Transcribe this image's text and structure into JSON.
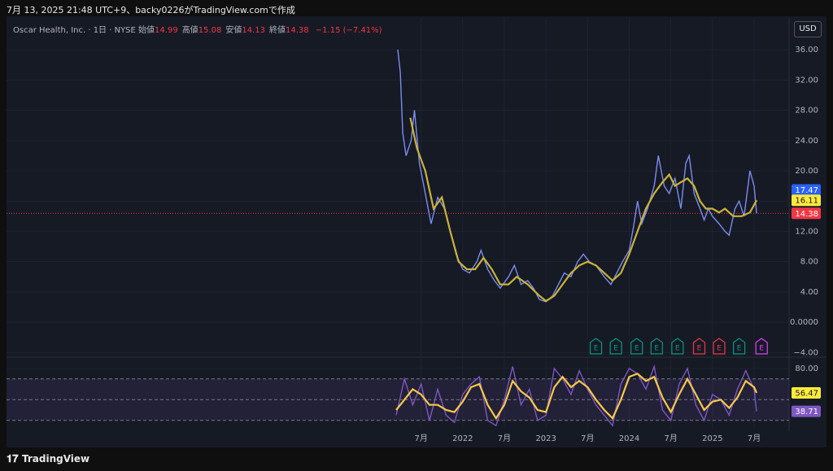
{
  "header": "7月 13, 2025 21:48 UTC+9、backy0226がTradingView.comで作成",
  "footer": "TradingView",
  "chart_data": [
    {
      "type": "line",
      "title": "Oscar Health, Inc. · 1日 · NYSE",
      "currency": "USD",
      "ohlc": [
        {
          "label": "始値",
          "value": 14.99
        },
        {
          "label": "高値",
          "value": 15.08
        },
        {
          "label": "安値",
          "value": 14.13
        },
        {
          "label": "終値",
          "value": 14.38
        }
      ],
      "change": "−1.15 (−7.41%)",
      "xlim": [
        2016.52,
        2025.92
      ],
      "xticks": [
        {
          "value": 2021.5,
          "label": "7月"
        },
        2022,
        {
          "value": 2022.5,
          "label": "7月"
        },
        2023,
        {
          "value": 2023.5,
          "label": "7月"
        },
        2024,
        {
          "value": 2024.5,
          "label": "7月"
        },
        2025,
        {
          "value": 2025.5,
          "label": "7月"
        }
      ],
      "ylim": [
        -4.5,
        40.2
      ],
      "yticks": [
        {
          "value": 36,
          "label": "36.00"
        },
        {
          "value": 32,
          "label": "32.00"
        },
        {
          "value": 28,
          "label": "28.00"
        },
        {
          "value": 24,
          "label": "24.00"
        },
        {
          "value": 20,
          "label": "20.00"
        },
        {
          "value": 16,
          "label": "16.00"
        },
        {
          "value": 12,
          "label": "12.00"
        },
        {
          "value": 8,
          "label": "8.00"
        },
        {
          "value": 4,
          "label": "4.00"
        },
        {
          "value": 0,
          "label": "0.0000"
        },
        {
          "value": -4,
          "label": "−4.00"
        }
      ],
      "grid": true,
      "series": [
        {
          "color": "#7b8cf0",
          "x": [
            2021.22,
            2021.25,
            2021.28,
            2021.32,
            2021.38,
            2021.42,
            2021.48,
            2021.55,
            2021.62,
            2021.7,
            2021.78,
            2021.85,
            2021.92,
            2022.0,
            2022.08,
            2022.17,
            2022.22,
            2022.3,
            2022.38,
            2022.45,
            2022.55,
            2022.62,
            2022.7,
            2022.78,
            2022.85,
            2022.92,
            2023.0,
            2023.08,
            2023.15,
            2023.22,
            2023.3,
            2023.38,
            2023.45,
            2023.52,
            2023.6,
            2023.7,
            2023.78,
            2023.85,
            2023.92,
            2024.0,
            2024.05,
            2024.1,
            2024.15,
            2024.22,
            2024.3,
            2024.35,
            2024.42,
            2024.48,
            2024.55,
            2024.62,
            2024.68,
            2024.72,
            2024.78,
            2024.85,
            2024.9,
            2024.95,
            2025.0,
            2025.08,
            2025.15,
            2025.2,
            2025.27,
            2025.32,
            2025.38,
            2025.45,
            2025.5,
            2025.53
          ],
          "values": [
            36,
            33,
            25,
            22,
            24,
            28,
            21,
            17,
            13,
            16.5,
            15,
            12,
            9,
            7,
            6.5,
            8,
            9.5,
            7,
            5.5,
            4.5,
            6,
            7.5,
            5,
            5.5,
            4.5,
            3,
            2.7,
            3.5,
            5,
            6.5,
            6,
            8,
            9,
            8,
            7.5,
            6,
            5,
            6.5,
            8,
            9.5,
            12.5,
            16,
            13,
            15,
            18,
            22,
            18,
            17,
            19,
            15,
            21,
            22,
            17,
            15,
            13.5,
            15,
            14,
            13,
            12,
            11.5,
            15,
            16,
            14,
            20,
            18,
            14.38
          ]
        },
        {
          "color": "#c9b33a",
          "x": [
            2021.37,
            2021.45,
            2021.55,
            2021.65,
            2021.75,
            2021.85,
            2021.95,
            2022.05,
            2022.15,
            2022.25,
            2022.35,
            2022.45,
            2022.55,
            2022.65,
            2022.78,
            2022.92,
            2023.0,
            2023.1,
            2023.2,
            2023.3,
            2023.4,
            2023.5,
            2023.6,
            2023.7,
            2023.8,
            2023.9,
            2024.0,
            2024.1,
            2024.2,
            2024.3,
            2024.4,
            2024.48,
            2024.55,
            2024.62,
            2024.7,
            2024.78,
            2024.85,
            2024.92,
            2025.0,
            2025.08,
            2025.15,
            2025.25,
            2025.35,
            2025.45,
            2025.53
          ],
          "values": [
            27,
            23,
            20,
            15,
            16.5,
            12,
            8,
            7,
            7,
            8.5,
            7,
            5,
            5,
            6,
            5,
            3.5,
            2.8,
            3.5,
            5,
            6.5,
            7.5,
            8,
            7.5,
            6.5,
            5.5,
            6.5,
            9,
            12,
            15,
            17,
            18.5,
            19.5,
            18,
            18.5,
            19,
            18,
            16,
            15,
            15,
            14.5,
            15,
            14,
            14,
            14.5,
            16.11
          ]
        }
      ],
      "last_markers": [
        {
          "value": 17.47,
          "color": "#2962ff"
        },
        {
          "value": 16.11,
          "color": "#ffeb3b"
        },
        {
          "value": 14.38,
          "color": "#f23645"
        }
      ],
      "last_line": {
        "value": 14.38,
        "color": "#f23645"
      },
      "earnings": [
        {
          "x": 2023.6,
          "label": "E",
          "color": "#089981"
        },
        {
          "x": 2023.84,
          "label": "E",
          "color": "#089981"
        },
        {
          "x": 2024.09,
          "label": "E",
          "color": "#089981"
        },
        {
          "x": 2024.33,
          "label": "E",
          "color": "#089981"
        },
        {
          "x": 2024.58,
          "label": "E",
          "color": "#089981"
        },
        {
          "x": 2024.84,
          "label": "E",
          "color": "#f23645"
        },
        {
          "x": 2025.08,
          "label": "E",
          "color": "#f23645"
        },
        {
          "x": 2025.32,
          "label": "E",
          "color": "#089981"
        },
        {
          "x": 2025.59,
          "label": "E",
          "color": "#e040fb"
        }
      ]
    },
    {
      "type": "line",
      "ylim": [
        22,
        90.2
      ],
      "yticks": [
        {
          "value": 80,
          "label": "80.00"
        }
      ],
      "bands": [
        30,
        50,
        70
      ],
      "series": [
        {
          "color": "#7e57c2",
          "x": [
            2021.2,
            2021.3,
            2021.4,
            2021.5,
            2021.6,
            2021.7,
            2021.8,
            2021.9,
            2022.0,
            2022.1,
            2022.2,
            2022.3,
            2022.4,
            2022.5,
            2022.6,
            2022.7,
            2022.8,
            2022.9,
            2023.0,
            2023.1,
            2023.2,
            2023.3,
            2023.4,
            2023.5,
            2023.6,
            2023.7,
            2023.8,
            2023.9,
            2024.0,
            2024.1,
            2024.2,
            2024.3,
            2024.4,
            2024.5,
            2024.6,
            2024.7,
            2024.8,
            2024.9,
            2025.0,
            2025.1,
            2025.2,
            2025.3,
            2025.4,
            2025.5,
            2025.53
          ],
          "values": [
            35,
            70,
            45,
            65,
            30,
            60,
            35,
            28,
            55,
            65,
            72,
            30,
            25,
            50,
            82,
            45,
            60,
            30,
            35,
            80,
            70,
            55,
            78,
            60,
            45,
            35,
            25,
            65,
            80,
            75,
            60,
            82,
            40,
            30,
            65,
            80,
            45,
            30,
            55,
            50,
            35,
            60,
            78,
            60,
            38.71
          ]
        },
        {
          "color": "#f7c948",
          "x": [
            2021.2,
            2021.3,
            2021.4,
            2021.5,
            2021.6,
            2021.7,
            2021.8,
            2021.9,
            2022.0,
            2022.1,
            2022.2,
            2022.3,
            2022.4,
            2022.5,
            2022.6,
            2022.7,
            2022.8,
            2022.9,
            2023.0,
            2023.1,
            2023.2,
            2023.3,
            2023.4,
            2023.5,
            2023.6,
            2023.7,
            2023.8,
            2023.9,
            2024.0,
            2024.1,
            2024.2,
            2024.3,
            2024.4,
            2024.5,
            2024.6,
            2024.7,
            2024.8,
            2024.9,
            2025.0,
            2025.1,
            2025.2,
            2025.3,
            2025.4,
            2025.5,
            2025.53
          ],
          "values": [
            40,
            50,
            60,
            55,
            45,
            45,
            40,
            38,
            48,
            62,
            65,
            45,
            32,
            45,
            68,
            58,
            52,
            40,
            38,
            62,
            72,
            62,
            68,
            62,
            50,
            40,
            32,
            50,
            72,
            75,
            68,
            72,
            52,
            38,
            55,
            70,
            55,
            40,
            48,
            50,
            42,
            52,
            68,
            62,
            56.47
          ]
        }
      ],
      "last_markers": [
        {
          "value": 56.47,
          "color": "#ffeb3b"
        },
        {
          "value": 38.71,
          "color": "#7e57c2"
        }
      ]
    }
  ]
}
